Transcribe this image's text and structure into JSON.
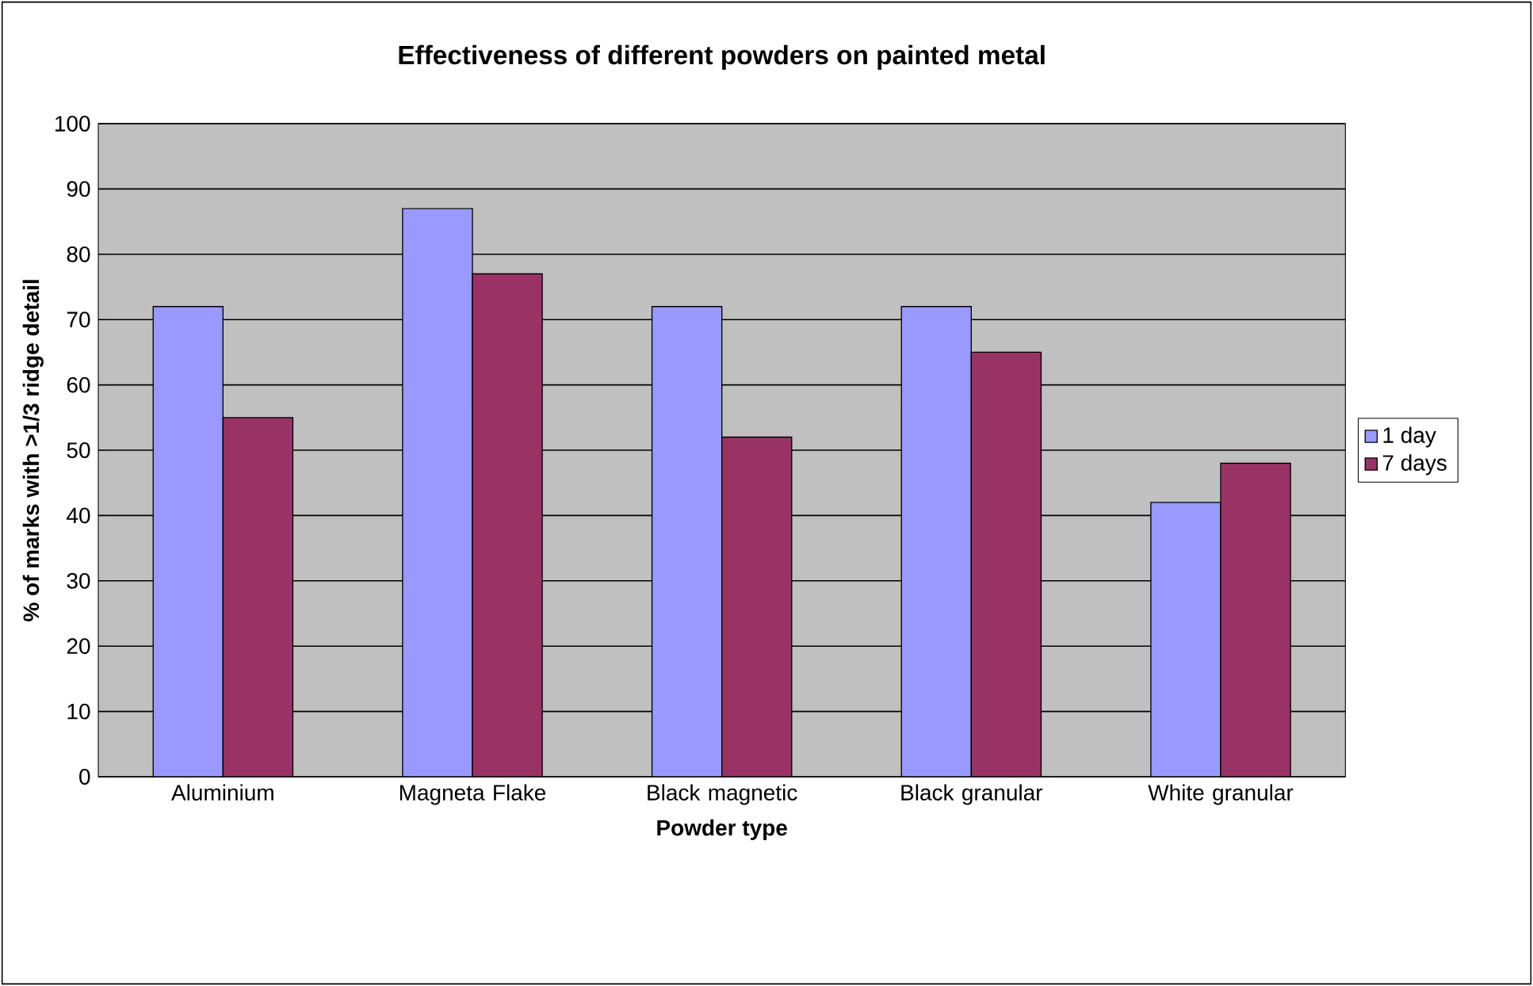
{
  "chart_data": {
    "type": "bar",
    "title": "Effectiveness of different powders on painted metal",
    "xlabel": "Powder type",
    "ylabel": "% of marks with >1/3 ridge detail",
    "categories": [
      "Aluminium",
      "Magneta Flake",
      "Black magnetic",
      "Black granular",
      "White granular"
    ],
    "series": [
      {
        "name": "1 day",
        "color": "#9999ff",
        "values": [
          72,
          87,
          72,
          72,
          42
        ]
      },
      {
        "name": "7 days",
        "color": "#993366",
        "values": [
          55,
          77,
          52,
          65,
          48
        ]
      }
    ],
    "ylim": [
      0,
      100
    ],
    "yticks": [
      0,
      10,
      20,
      30,
      40,
      50,
      60,
      70,
      80,
      90,
      100
    ],
    "grid": "y",
    "legend": "right"
  }
}
